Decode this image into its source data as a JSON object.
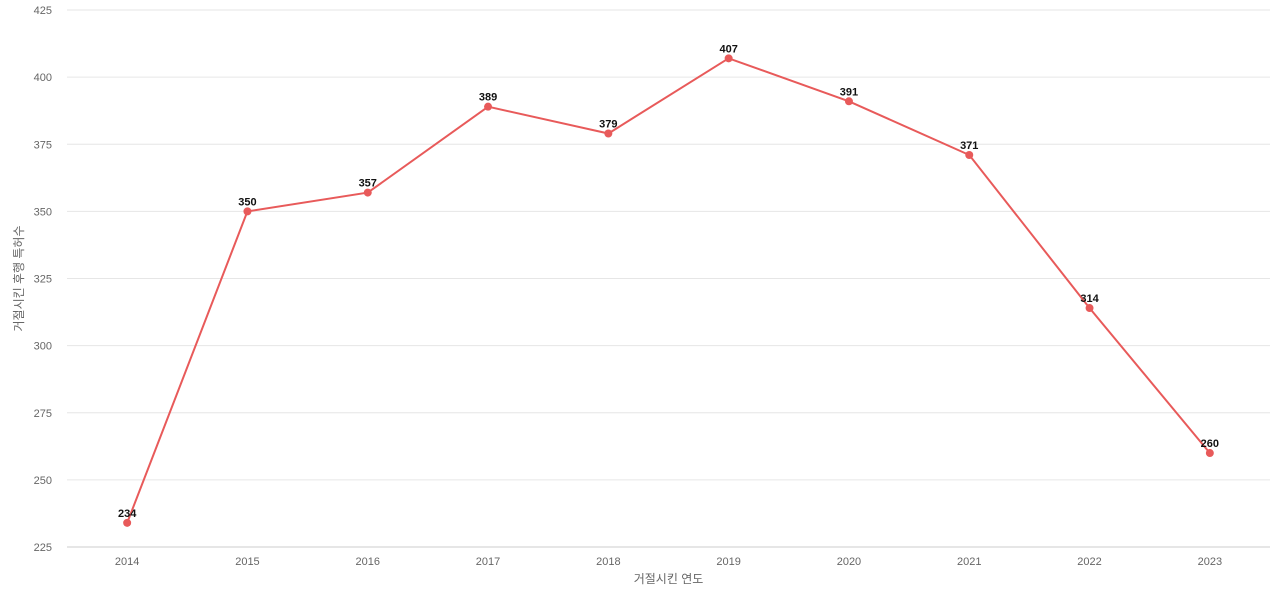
{
  "chart_data": {
    "type": "line",
    "title": "",
    "xlabel": "거절시킨 연도",
    "ylabel": "거절시킨 후행 특허수",
    "categories": [
      "2014",
      "2015",
      "2016",
      "2017",
      "2018",
      "2019",
      "2020",
      "2021",
      "2022",
      "2023"
    ],
    "series": [
      {
        "values": [
          234,
          350,
          357,
          389,
          379,
          407,
          391,
          371,
          314,
          260
        ],
        "color": "#e85a5a"
      }
    ],
    "ylim": [
      225,
      425
    ],
    "yticks": [
      225,
      250,
      275,
      300,
      325,
      350,
      375,
      400,
      425
    ],
    "grid": true,
    "data_labels": true,
    "legend": "none"
  }
}
